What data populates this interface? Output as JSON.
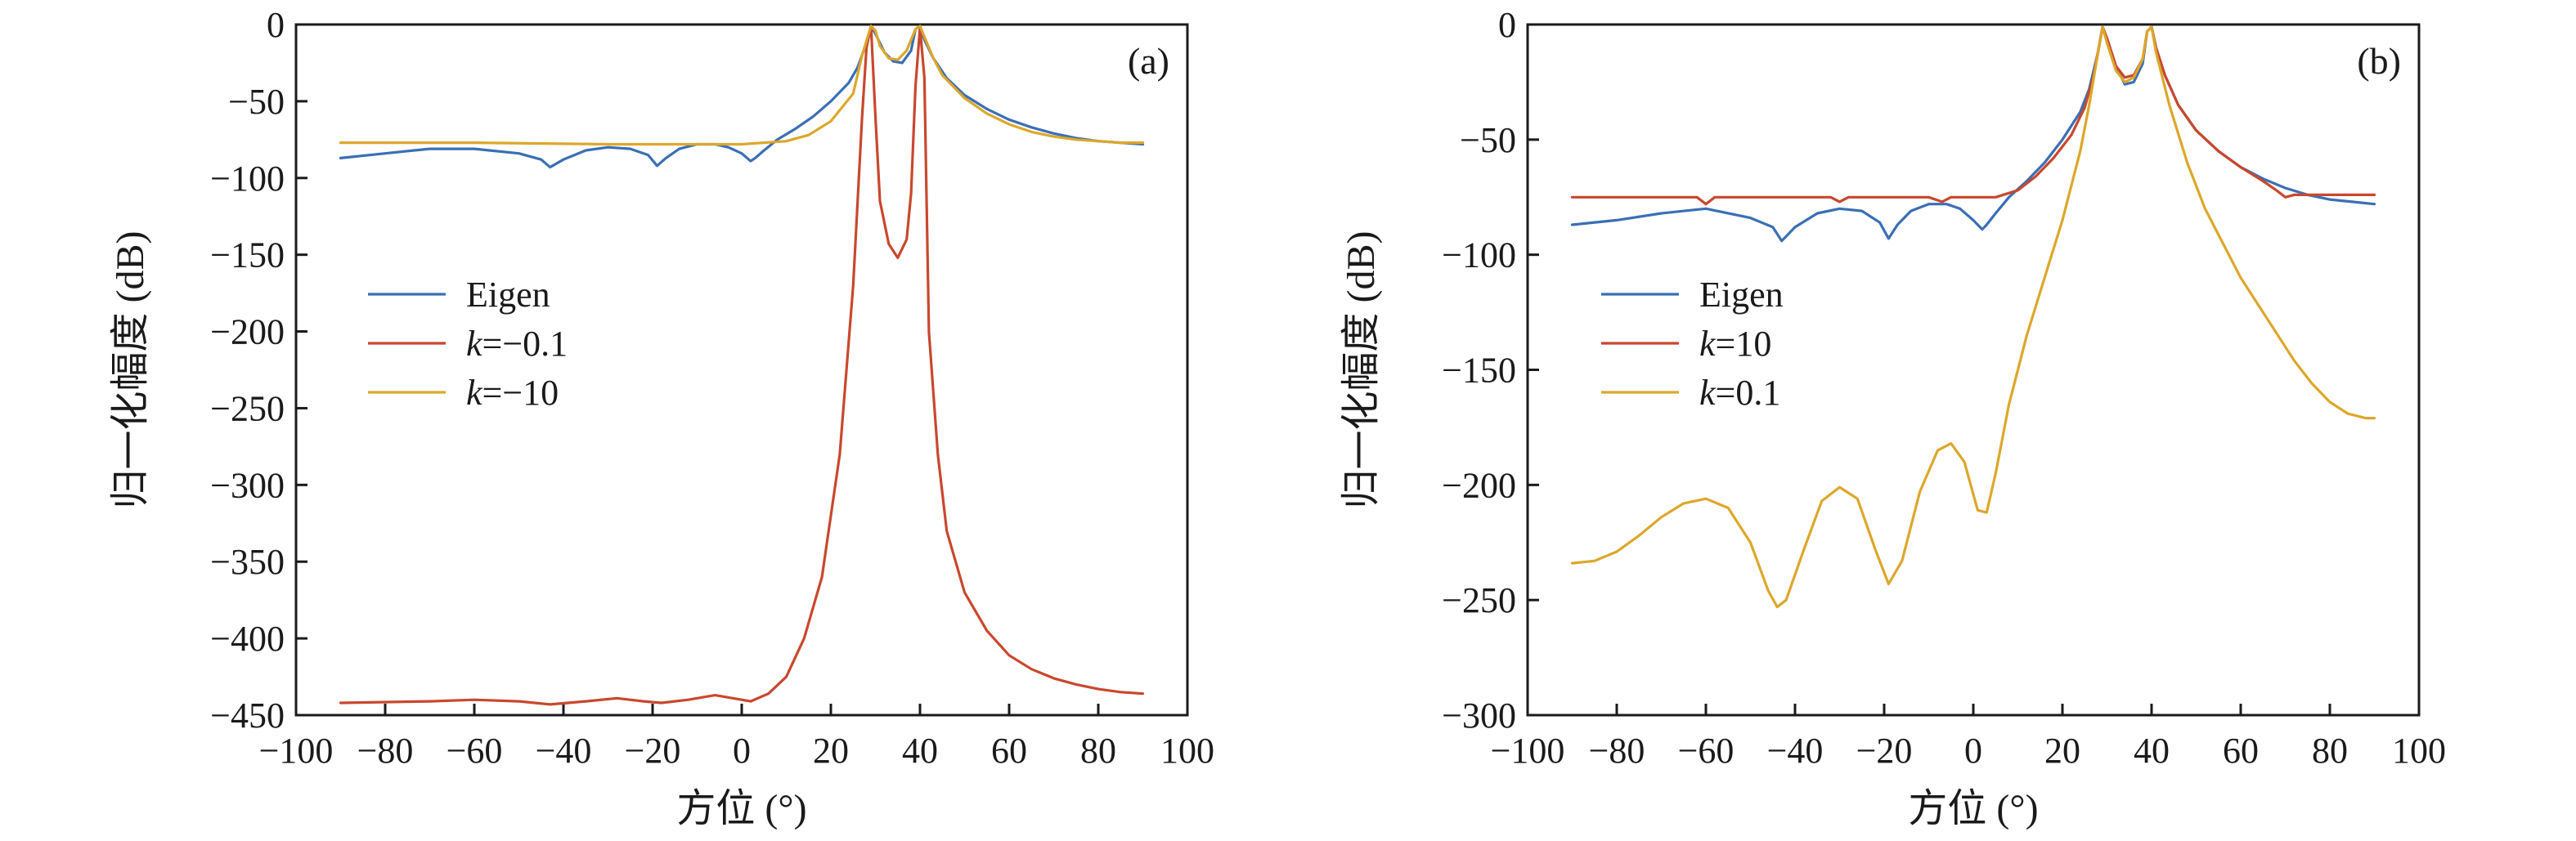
{
  "chart_data": [
    {
      "type": "line",
      "panel_label": "(a)",
      "xlabel": "方位 (°)",
      "ylabel": "归一化幅度 (dB)",
      "xlim": [
        -100,
        100
      ],
      "ylim": [
        -450,
        0
      ],
      "xticks": [
        -100,
        -80,
        -60,
        -40,
        -20,
        0,
        20,
        40,
        60,
        80,
        100
      ],
      "yticks": [
        0,
        -50,
        -100,
        -150,
        -200,
        -250,
        -300,
        -350,
        -400,
        -450
      ],
      "xtick_labels": [
        "−100",
        "−80",
        "−60",
        "−40",
        "−20",
        "0",
        "20",
        "40",
        "60",
        "80",
        "100"
      ],
      "ytick_labels": [
        "0",
        "−50",
        "−100",
        "−150",
        "−200",
        "−250",
        "−300",
        "−350",
        "−400",
        "−450"
      ],
      "legend": {
        "placement": "center-left",
        "entries": [
          {
            "prefix": "",
            "text": "Eigen"
          },
          {
            "prefix": "k",
            "text": "=−0.1"
          },
          {
            "prefix": "k",
            "text": "=−10"
          }
        ]
      },
      "series": [
        {
          "name": "Eigen",
          "color": "#3a6fb4",
          "x": [
            -90,
            -80,
            -70,
            -60,
            -50,
            -45,
            -43,
            -40,
            -35,
            -30,
            -25,
            -21,
            -19,
            -17,
            -14,
            -10,
            -6,
            -3,
            0,
            2,
            3,
            5,
            8,
            12,
            16,
            20,
            24,
            26,
            28,
            29,
            30,
            32,
            34,
            36,
            38,
            39,
            40,
            41,
            43,
            46,
            50,
            55,
            60,
            65,
            70,
            75,
            80,
            85,
            90
          ],
          "y": [
            -87,
            -84,
            -81,
            -81,
            -84,
            -88,
            -93,
            -88,
            -82,
            -80,
            -81,
            -85,
            -92,
            -87,
            -81,
            -78,
            -78,
            -80,
            -84,
            -89,
            -87,
            -82,
            -75,
            -68,
            -60,
            -50,
            -38,
            -28,
            -12,
            -1,
            -6,
            -18,
            -24,
            -25,
            -17,
            -3,
            -1,
            -10,
            -22,
            -35,
            -46,
            -55,
            -62,
            -67,
            -71,
            -74,
            -76,
            -77,
            -78
          ]
        },
        {
          "name": "k=−0.1",
          "color": "#c8482e",
          "x": [
            -90,
            -70,
            -60,
            -50,
            -43,
            -35,
            -28,
            -22,
            -18,
            -12,
            -6,
            -2,
            2,
            6,
            10,
            14,
            18,
            22,
            25,
            27,
            28,
            29,
            30,
            31,
            33,
            35,
            37,
            38,
            39,
            40,
            41,
            42,
            44,
            46,
            50,
            55,
            60,
            65,
            70,
            75,
            80,
            85,
            90
          ],
          "y": [
            -442,
            -441,
            -440,
            -441,
            -443,
            -441,
            -439,
            -441,
            -442,
            -440,
            -437,
            -439,
            -441,
            -436,
            -425,
            -400,
            -360,
            -280,
            -170,
            -60,
            -15,
            -1,
            -60,
            -115,
            -143,
            -152,
            -140,
            -110,
            -40,
            -2,
            -35,
            -200,
            -280,
            -330,
            -370,
            -395,
            -411,
            -420,
            -426,
            -430,
            -433,
            -435,
            -436
          ]
        },
        {
          "name": "k=−10",
          "color": "#dca72b",
          "x": [
            -90,
            -60,
            -30,
            0,
            10,
            15,
            20,
            25,
            27,
            29,
            30,
            31,
            33,
            35,
            37,
            39,
            40,
            41,
            43,
            45,
            50,
            55,
            60,
            65,
            70,
            75,
            80,
            85,
            90
          ],
          "y": [
            -77,
            -77,
            -78,
            -78,
            -76,
            -72,
            -63,
            -45,
            -20,
            -1,
            -4,
            -14,
            -22,
            -23,
            -17,
            -3,
            -1,
            -8,
            -22,
            -33,
            -48,
            -58,
            -65,
            -70,
            -73,
            -75,
            -76,
            -77,
            -77
          ]
        }
      ]
    },
    {
      "type": "line",
      "panel_label": "(b)",
      "xlabel": "方位 (°)",
      "ylabel": "归一化幅度 (dB)",
      "xlim": [
        -100,
        100
      ],
      "ylim": [
        -300,
        0
      ],
      "xticks": [
        -100,
        -80,
        -60,
        -40,
        -20,
        0,
        20,
        40,
        60,
        80,
        100
      ],
      "yticks": [
        0,
        -50,
        -100,
        -150,
        -200,
        -250,
        -300
      ],
      "xtick_labels": [
        "−100",
        "−80",
        "−60",
        "−40",
        "−20",
        "0",
        "20",
        "40",
        "60",
        "80",
        "100"
      ],
      "ytick_labels": [
        "0",
        "−50",
        "−100",
        "−150",
        "−200",
        "−250",
        "−300"
      ],
      "legend": {
        "placement": "center-left",
        "entries": [
          {
            "prefix": "",
            "text": "Eigen"
          },
          {
            "prefix": "k",
            "text": "=10"
          },
          {
            "prefix": "k",
            "text": "=0.1"
          }
        ]
      },
      "series": [
        {
          "name": "Eigen",
          "color": "#3a6fb4",
          "x": [
            -90,
            -80,
            -70,
            -60,
            -50,
            -45,
            -43,
            -40,
            -35,
            -30,
            -25,
            -21,
            -19,
            -17,
            -14,
            -10,
            -6,
            -3,
            0,
            2,
            3,
            5,
            8,
            12,
            16,
            20,
            24,
            26,
            28,
            29,
            30,
            32,
            34,
            36,
            38,
            39,
            40,
            41,
            43,
            46,
            50,
            55,
            60,
            65,
            70,
            75,
            80,
            85,
            90
          ],
          "y": [
            -87,
            -85,
            -82,
            -80,
            -84,
            -88,
            -94,
            -88,
            -82,
            -80,
            -81,
            -86,
            -93,
            -87,
            -81,
            -78,
            -78,
            -80,
            -85,
            -89,
            -87,
            -82,
            -75,
            -68,
            -60,
            -50,
            -38,
            -28,
            -12,
            -1,
            -6,
            -18,
            -26,
            -25,
            -17,
            -3,
            -1,
            -10,
            -22,
            -35,
            -46,
            -55,
            -62,
            -67,
            -71,
            -74,
            -76,
            -77,
            -78
          ]
        },
        {
          "name": "k=10",
          "color": "#c8482e",
          "x": [
            -90,
            -70,
            -62,
            -60,
            -58,
            -50,
            -40,
            -32,
            -30,
            -28,
            -20,
            -10,
            -7,
            -5,
            0,
            5,
            10,
            14,
            18,
            22,
            25,
            27,
            29,
            30,
            32,
            34,
            36,
            38,
            39,
            40,
            41,
            43,
            46,
            50,
            55,
            60,
            65,
            68,
            70,
            72,
            78,
            85,
            90
          ],
          "y": [
            -75,
            -75,
            -75,
            -78,
            -75,
            -75,
            -75,
            -75,
            -77,
            -75,
            -75,
            -75,
            -77,
            -75,
            -75,
            -75,
            -72,
            -66,
            -58,
            -48,
            -36,
            -22,
            -1,
            -6,
            -18,
            -23,
            -22,
            -15,
            -3,
            -1,
            -10,
            -22,
            -35,
            -46,
            -55,
            -62,
            -68,
            -72,
            -75,
            -74,
            -74,
            -74,
            -74
          ]
        },
        {
          "name": "k=0.1",
          "color": "#dca72b",
          "x": [
            -90,
            -85,
            -80,
            -75,
            -70,
            -65,
            -60,
            -55,
            -50,
            -46,
            -44,
            -42,
            -38,
            -34,
            -30,
            -26,
            -22,
            -19,
            -16,
            -12,
            -8,
            -5,
            -2,
            1,
            3,
            5,
            8,
            12,
            16,
            20,
            24,
            26,
            28,
            29,
            30,
            32,
            34,
            36,
            38,
            39,
            40,
            41,
            44,
            48,
            52,
            56,
            60,
            64,
            68,
            72,
            76,
            80,
            84,
            88,
            90
          ],
          "y": [
            -234,
            -233,
            -229,
            -222,
            -214,
            -208,
            -206,
            -210,
            -225,
            -246,
            -253,
            -250,
            -228,
            -207,
            -201,
            -206,
            -228,
            -243,
            -233,
            -203,
            -185,
            -182,
            -190,
            -211,
            -212,
            -195,
            -165,
            -135,
            -110,
            -85,
            -55,
            -35,
            -12,
            -1,
            -8,
            -20,
            -25,
            -23,
            -15,
            -3,
            -1,
            -12,
            -35,
            -60,
            -80,
            -95,
            -110,
            -122,
            -134,
            -146,
            -156,
            -164,
            -169,
            -171,
            -171
          ]
        }
      ]
    }
  ]
}
